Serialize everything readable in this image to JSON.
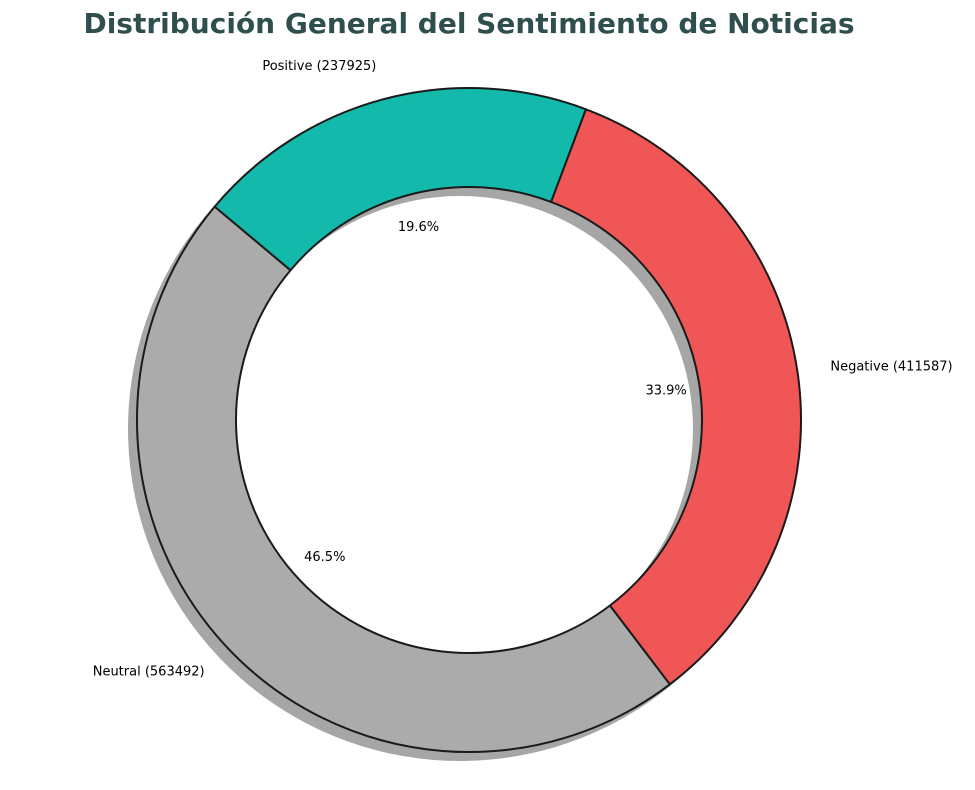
{
  "chart_data": {
    "type": "pie",
    "donut": true,
    "title": "Distribución General del Sentimiento de Noticias",
    "slices": [
      {
        "name": "Neutral",
        "label": "Neutral (563492)",
        "value": 563492,
        "pct_label": "46.5%",
        "color": "#ababab"
      },
      {
        "name": "Negative",
        "label": "Negative (411587)",
        "value": 411587,
        "pct_label": "33.9%",
        "color": "#f05656"
      },
      {
        "name": "Positive",
        "label": "Positive (237925)",
        "value": 237925,
        "pct_label": "19.6%",
        "color": "#13b9aa"
      }
    ],
    "shadow": true,
    "edge_color": "#1a1a1a"
  }
}
